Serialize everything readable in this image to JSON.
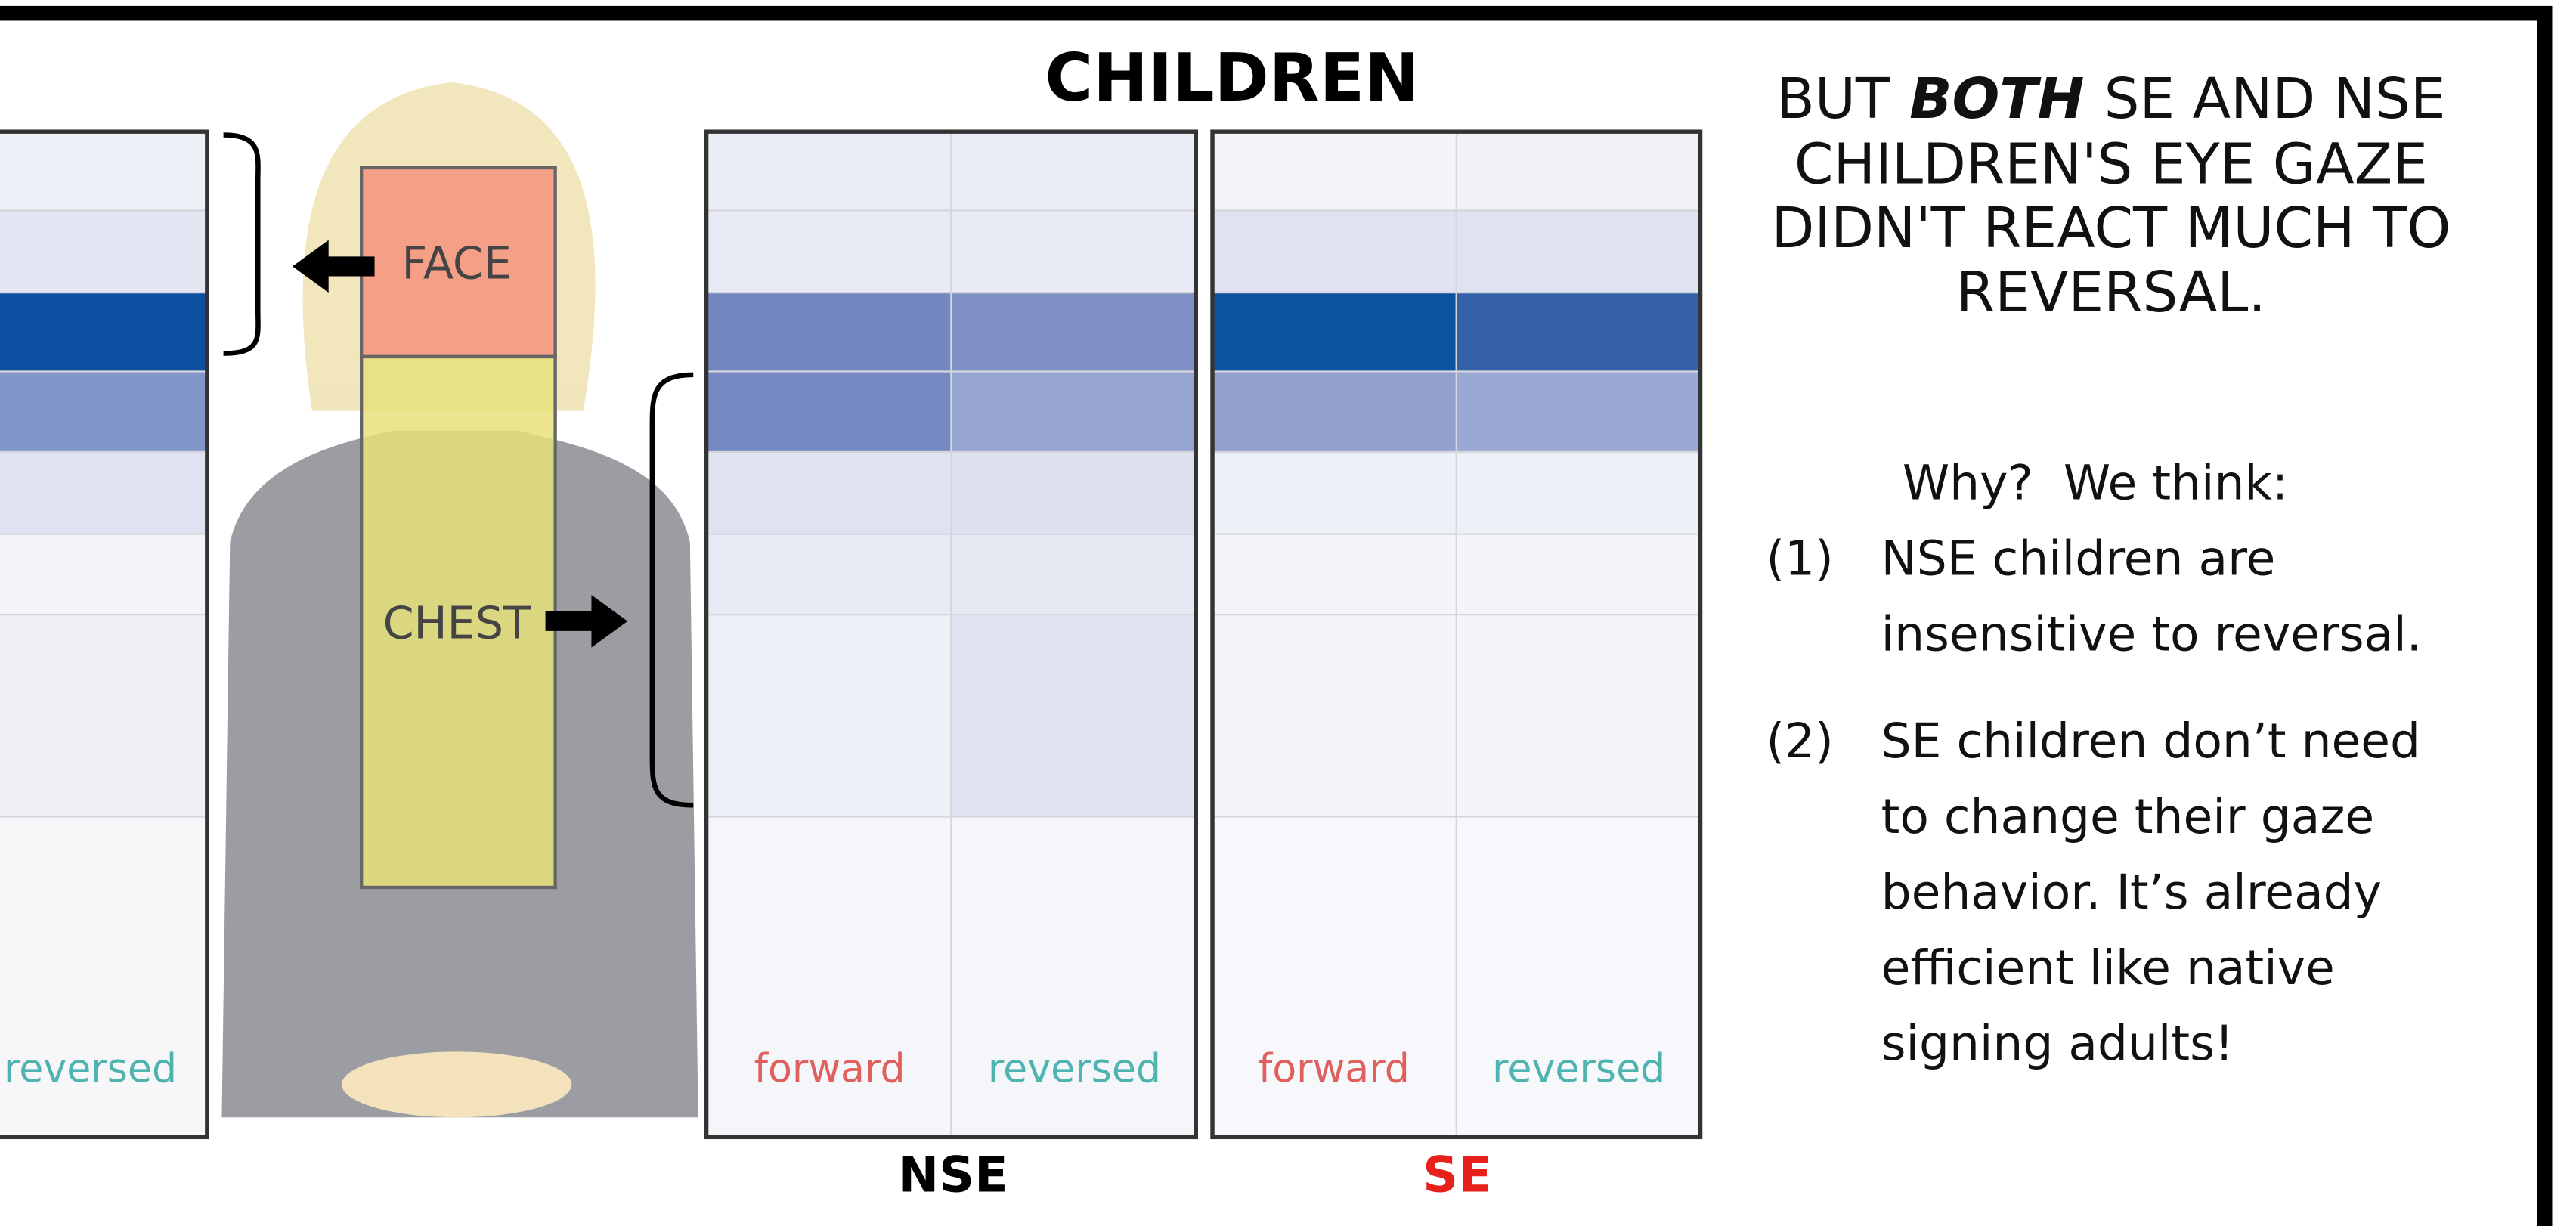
{
  "title": "CHILDREN",
  "left_panel": {
    "column_label": "reversed"
  },
  "figure": {
    "face_label": "FACE",
    "chest_label": "CHEST"
  },
  "panels": [
    {
      "name": "NSE",
      "columns": [
        "forward",
        "reversed"
      ]
    },
    {
      "name": "SE",
      "columns": [
        "forward",
        "reversed"
      ]
    }
  ],
  "note": {
    "heading_first": {
      "before": "BUT",
      "emphasis": "BOTH",
      "after": "SE AND NSE"
    },
    "heading_lines": [
      "CHILDREN'S EYE GAZE",
      "DIDN'T REACT MUCH TO",
      "REVERSAL."
    ],
    "intro": "Why?  We think:",
    "items": [
      {
        "number": "(1)",
        "lines": [
          "NSE children are",
          "insensitive to reversal."
        ]
      },
      {
        "number": "(2)",
        "lines": [
          "SE children don’t need",
          "to change their gaze",
          "behavior.  It’s already",
          "efficient like native",
          "signing adults!"
        ]
      }
    ]
  }
}
